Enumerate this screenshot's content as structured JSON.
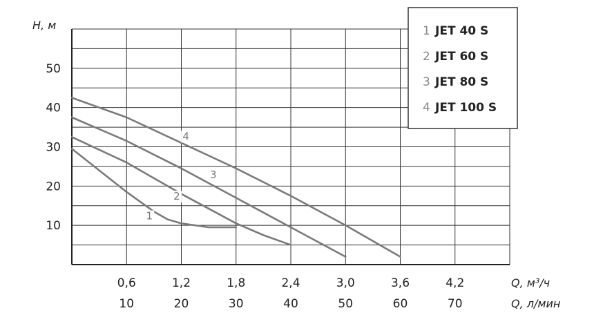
{
  "chart_data": {
    "type": "line",
    "y_axis": {
      "label": "H, м",
      "ticks": [
        "10",
        "20",
        "30",
        "40",
        "50"
      ],
      "tick_values": [
        10,
        20,
        30,
        40,
        50
      ],
      "ylim": [
        0,
        60
      ]
    },
    "x_axis": {
      "label": "Q, м³/ч",
      "ticks": [
        "0,6",
        "1,2",
        "1,8",
        "2,4",
        "3,0",
        "3,6",
        "4,2"
      ],
      "tick_values": [
        0.6,
        1.2,
        1.8,
        2.4,
        3.0,
        3.6,
        4.2
      ],
      "xlim": [
        0,
        4.8
      ]
    },
    "x_axis_secondary": {
      "label": "Q, л/мин",
      "ticks": [
        "10",
        "20",
        "30",
        "40",
        "50",
        "60",
        "70"
      ]
    },
    "grid": true,
    "legend_position": "top-right",
    "series": [
      {
        "id": "1",
        "name": "JET 40 S",
        "label": "1",
        "x": [
          0,
          0.3,
          0.6,
          0.9,
          1.05,
          1.2,
          1.5,
          1.8
        ],
        "y": [
          29.5,
          24,
          18.5,
          13.5,
          11.5,
          10.5,
          9.5,
          9.5
        ]
      },
      {
        "id": "2",
        "name": "JET 60 S",
        "label": "2",
        "x": [
          0,
          0.6,
          1.2,
          1.8,
          2.1,
          2.4
        ],
        "y": [
          32.5,
          26,
          18,
          10.5,
          7.5,
          5
        ]
      },
      {
        "id": "3",
        "name": "JET 80 S",
        "label": "3",
        "x": [
          0,
          0.6,
          1.2,
          1.8,
          2.4,
          3.0
        ],
        "y": [
          37.5,
          31.5,
          24.5,
          17,
          9.5,
          2
        ]
      },
      {
        "id": "4",
        "name": "JET 100 S",
        "label": "4",
        "x": [
          0,
          0.6,
          1.2,
          1.8,
          2.4,
          3.0,
          3.6
        ],
        "y": [
          42.5,
          37.5,
          31,
          24.5,
          17.5,
          10,
          2
        ]
      }
    ],
    "legend": [
      {
        "num": "1",
        "name": "JET 40 S"
      },
      {
        "num": "2",
        "name": "JET 60 S"
      },
      {
        "num": "3",
        "name": "JET 80 S"
      },
      {
        "num": "4",
        "name": "JET 100 S"
      }
    ]
  }
}
